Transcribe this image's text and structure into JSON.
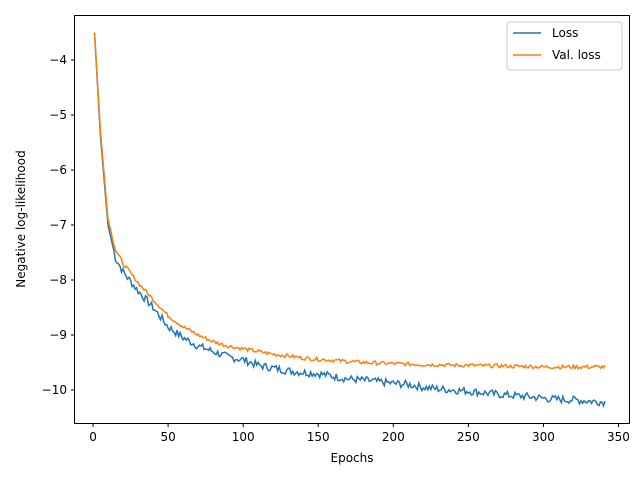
{
  "chart_data": {
    "type": "line",
    "xlabel": "Epochs",
    "ylabel": "Negative log-likelihood",
    "xlim": [
      -12,
      357
    ],
    "ylim": [
      -10.6,
      -3.2
    ],
    "x_ticks": [
      0,
      50,
      100,
      150,
      200,
      250,
      300,
      350
    ],
    "y_ticks": [
      -10,
      -9,
      -8,
      -7,
      -6,
      -5,
      -4
    ],
    "y_tick_labels": [
      "−10",
      "−9",
      "−8",
      "−7",
      "−6",
      "−5",
      "−4"
    ],
    "legend_position": "top-right",
    "grid": false,
    "series": [
      {
        "name": "Loss",
        "color": "#1f77b4",
        "x": [
          1,
          5,
          10,
          15,
          20,
          30,
          40,
          50,
          60,
          70,
          80,
          90,
          100,
          110,
          120,
          130,
          140,
          150,
          160,
          170,
          180,
          190,
          200,
          210,
          220,
          230,
          240,
          250,
          260,
          270,
          280,
          290,
          300,
          310,
          320,
          330,
          341
        ],
        "y": [
          -3.5,
          -5.4,
          -7.0,
          -7.6,
          -7.85,
          -8.2,
          -8.5,
          -8.85,
          -9.05,
          -9.2,
          -9.3,
          -9.4,
          -9.45,
          -9.55,
          -9.6,
          -9.65,
          -9.68,
          -9.7,
          -9.75,
          -9.8,
          -9.82,
          -9.85,
          -9.88,
          -9.9,
          -9.95,
          -9.98,
          -10.0,
          -10.02,
          -10.05,
          -10.08,
          -10.1,
          -10.12,
          -10.15,
          -10.17,
          -10.18,
          -10.2,
          -10.22
        ]
      },
      {
        "name": "Val. loss",
        "color": "#ff7f0e",
        "x": [
          1,
          5,
          10,
          15,
          20,
          30,
          40,
          50,
          60,
          70,
          80,
          90,
          100,
          110,
          120,
          130,
          140,
          150,
          160,
          170,
          180,
          190,
          200,
          210,
          220,
          230,
          240,
          250,
          260,
          270,
          280,
          290,
          300,
          310,
          320,
          330,
          341
        ],
        "y": [
          -3.5,
          -5.3,
          -6.9,
          -7.45,
          -7.7,
          -8.05,
          -8.35,
          -8.65,
          -8.85,
          -9.0,
          -9.12,
          -9.2,
          -9.25,
          -9.3,
          -9.35,
          -9.38,
          -9.42,
          -9.44,
          -9.46,
          -9.48,
          -9.5,
          -9.51,
          -9.52,
          -9.53,
          -9.54,
          -9.54,
          -9.55,
          -9.55,
          -9.56,
          -9.56,
          -9.57,
          -9.57,
          -9.58,
          -9.58,
          -9.58,
          -9.58,
          -9.58
        ]
      }
    ]
  }
}
